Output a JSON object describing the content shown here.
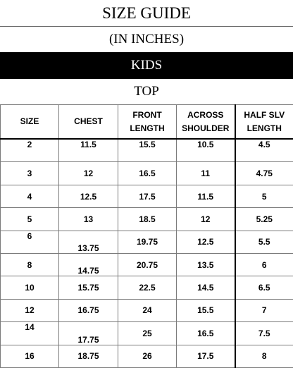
{
  "title": "SIZE GUIDE",
  "units": "(IN INCHES)",
  "category": "KIDS",
  "section": "TOP",
  "colors": {
    "category_band": "#000000",
    "category_text": "#ffffff"
  },
  "table": {
    "headers": [
      {
        "line1": "SIZE",
        "line2": ""
      },
      {
        "line1": "CHEST",
        "line2": ""
      },
      {
        "line1": "FRONT",
        "line2": "LENGTH"
      },
      {
        "line1": "ACROSS",
        "line2": "SHOULDER"
      },
      {
        "line1": "HALF SLV",
        "line2": "LENGTH"
      }
    ],
    "rows": [
      {
        "size": "2",
        "chest": "11.5",
        "front_length": "15.5",
        "across_shoulder": "10.5",
        "half_slv_length": "4.5"
      },
      {
        "size": "3",
        "chest": "12",
        "front_length": "16.5",
        "across_shoulder": "11",
        "half_slv_length": "4.75"
      },
      {
        "size": "4",
        "chest": "12.5",
        "front_length": "17.5",
        "across_shoulder": "11.5",
        "half_slv_length": "5"
      },
      {
        "size": "5",
        "chest": "13",
        "front_length": "18.5",
        "across_shoulder": "12",
        "half_slv_length": "5.25"
      },
      {
        "size": "6",
        "chest": "13.75",
        "front_length": "19.75",
        "across_shoulder": "12.5",
        "half_slv_length": "5.5"
      },
      {
        "size": "8",
        "chest": "14.75",
        "front_length": "20.75",
        "across_shoulder": "13.5",
        "half_slv_length": "6"
      },
      {
        "size": "10",
        "chest": "15.75",
        "front_length": "22.5",
        "across_shoulder": "14.5",
        "half_slv_length": "6.5"
      },
      {
        "size": "12",
        "chest": "16.75",
        "front_length": "24",
        "across_shoulder": "15.5",
        "half_slv_length": "7"
      },
      {
        "size": "14",
        "chest": "17.75",
        "front_length": "25",
        "across_shoulder": "16.5",
        "half_slv_length": "7.5"
      },
      {
        "size": "16",
        "chest": "18.75",
        "front_length": "26",
        "across_shoulder": "17.5",
        "half_slv_length": "8"
      }
    ]
  }
}
